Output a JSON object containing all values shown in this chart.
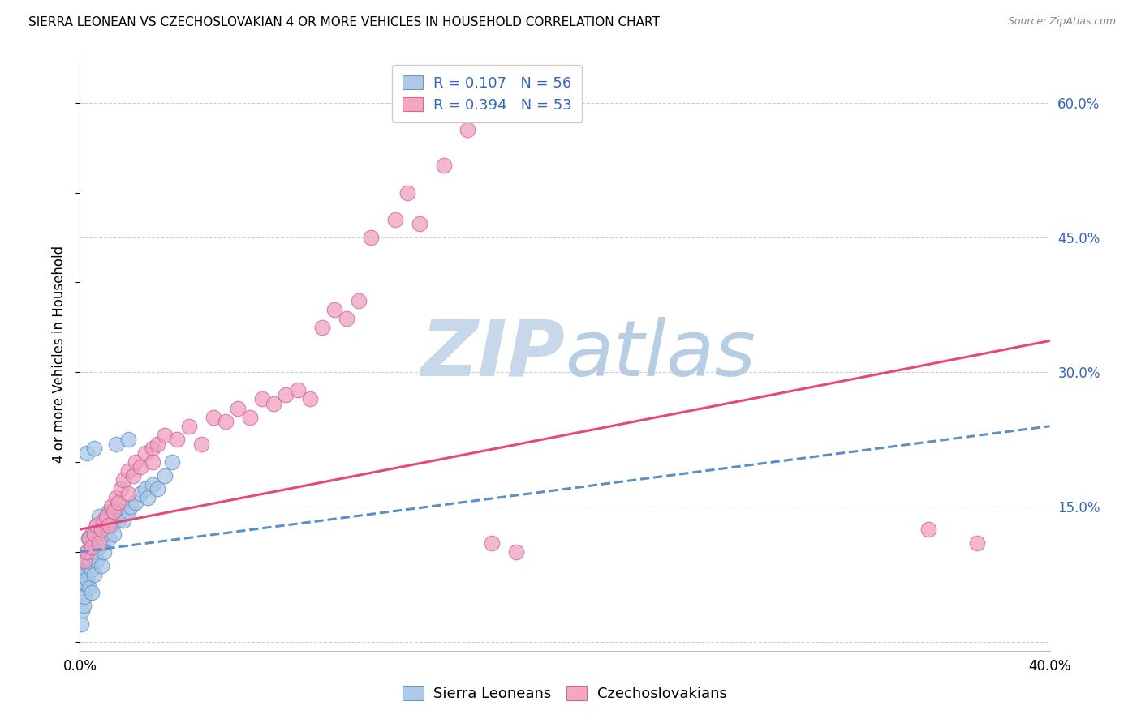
{
  "title": "SIERRA LEONEAN VS CZECHOSLOVAKIAN 4 OR MORE VEHICLES IN HOUSEHOLD CORRELATION CHART",
  "source": "Source: ZipAtlas.com",
  "ylabel": "4 or more Vehicles in Household",
  "xlim": [
    0.0,
    40.0
  ],
  "ylim": [
    -1.0,
    65.0
  ],
  "xticks": [
    0.0,
    5.0,
    10.0,
    15.0,
    20.0,
    25.0,
    30.0,
    35.0,
    40.0
  ],
  "yticks_right": [
    0.0,
    15.0,
    30.0,
    45.0,
    60.0
  ],
  "scatter_blue_x": [
    0.05,
    0.1,
    0.1,
    0.15,
    0.15,
    0.2,
    0.2,
    0.25,
    0.25,
    0.3,
    0.3,
    0.35,
    0.35,
    0.4,
    0.4,
    0.45,
    0.5,
    0.5,
    0.5,
    0.55,
    0.6,
    0.6,
    0.65,
    0.7,
    0.7,
    0.75,
    0.8,
    0.8,
    0.85,
    0.9,
    0.9,
    1.0,
    1.0,
    1.1,
    1.2,
    1.2,
    1.3,
    1.4,
    1.5,
    1.6,
    1.7,
    1.8,
    2.0,
    2.1,
    2.3,
    2.5,
    2.7,
    2.8,
    3.0,
    3.2,
    3.5,
    3.8,
    0.3,
    0.6,
    1.5,
    2.0
  ],
  "scatter_blue_y": [
    2.0,
    3.5,
    6.0,
    4.0,
    7.5,
    5.0,
    9.0,
    6.5,
    8.0,
    7.0,
    10.0,
    8.5,
    11.5,
    9.0,
    6.0,
    10.5,
    8.0,
    12.0,
    5.5,
    9.5,
    11.0,
    7.5,
    10.0,
    9.0,
    13.0,
    11.5,
    10.5,
    14.0,
    12.5,
    11.0,
    8.5,
    13.5,
    10.0,
    12.0,
    11.5,
    14.5,
    13.0,
    12.0,
    14.0,
    13.5,
    14.5,
    13.5,
    14.5,
    15.0,
    15.5,
    16.5,
    17.0,
    16.0,
    17.5,
    17.0,
    18.5,
    20.0,
    21.0,
    21.5,
    22.0,
    22.5
  ],
  "scatter_pink_x": [
    0.2,
    0.3,
    0.4,
    0.5,
    0.6,
    0.7,
    0.8,
    0.9,
    1.0,
    1.1,
    1.2,
    1.3,
    1.4,
    1.5,
    1.6,
    1.7,
    1.8,
    2.0,
    2.0,
    2.2,
    2.3,
    2.5,
    2.7,
    3.0,
    3.0,
    3.2,
    3.5,
    4.0,
    4.5,
    5.0,
    5.5,
    6.0,
    6.5,
    7.0,
    7.5,
    8.0,
    8.5,
    9.0,
    9.5,
    10.0,
    10.5,
    11.0,
    11.5,
    12.0,
    13.0,
    13.5,
    14.0,
    15.0,
    16.0,
    17.0,
    18.0,
    35.0,
    37.0
  ],
  "scatter_pink_y": [
    9.0,
    10.0,
    11.5,
    10.5,
    12.0,
    13.0,
    11.0,
    12.5,
    13.5,
    14.0,
    13.0,
    15.0,
    14.5,
    16.0,
    15.5,
    17.0,
    18.0,
    16.5,
    19.0,
    18.5,
    20.0,
    19.5,
    21.0,
    21.5,
    20.0,
    22.0,
    23.0,
    22.5,
    24.0,
    22.0,
    25.0,
    24.5,
    26.0,
    25.0,
    27.0,
    26.5,
    27.5,
    28.0,
    27.0,
    35.0,
    37.0,
    36.0,
    38.0,
    45.0,
    47.0,
    50.0,
    46.5,
    53.0,
    57.0,
    11.0,
    10.0,
    12.5,
    11.0
  ],
  "reg_blue_x0": 0.0,
  "reg_blue_x1": 40.0,
  "reg_blue_y0": 10.0,
  "reg_blue_y1": 24.0,
  "reg_pink_x0": 0.0,
  "reg_pink_x1": 40.0,
  "reg_pink_y0": 12.5,
  "reg_pink_y1": 33.5,
  "blue_scatter_fc": "#a8c8e8",
  "blue_scatter_ec": "#6090c0",
  "pink_scatter_fc": "#f0a0c0",
  "pink_scatter_ec": "#d06090",
  "reg_blue_color": "#5890c8",
  "reg_pink_color": "#e84878",
  "watermark_zip_color": "#c0d4e8",
  "watermark_atlas_color": "#b0c8e0",
  "bg_color": "#ffffff",
  "grid_color": "#d0d0d0",
  "legend_text_color": "#3366bb",
  "right_tick_color": "#3366bb",
  "title_fontsize": 11,
  "axis_fontsize": 12,
  "legend_fontsize": 13,
  "scatter_size": 180,
  "scatter_alpha": 0.75,
  "leg1_label1": "R = 0.107   N = 56",
  "leg1_label2": "R = 0.394   N = 53",
  "leg1_patch1_fc": "#aec8e8",
  "leg1_patch1_ec": "#7098c0",
  "leg1_patch2_fc": "#f4a8c0",
  "leg1_patch2_ec": "#d06888",
  "leg2_label1": "Sierra Leoneans",
  "leg2_label2": "Czechoslovakians"
}
